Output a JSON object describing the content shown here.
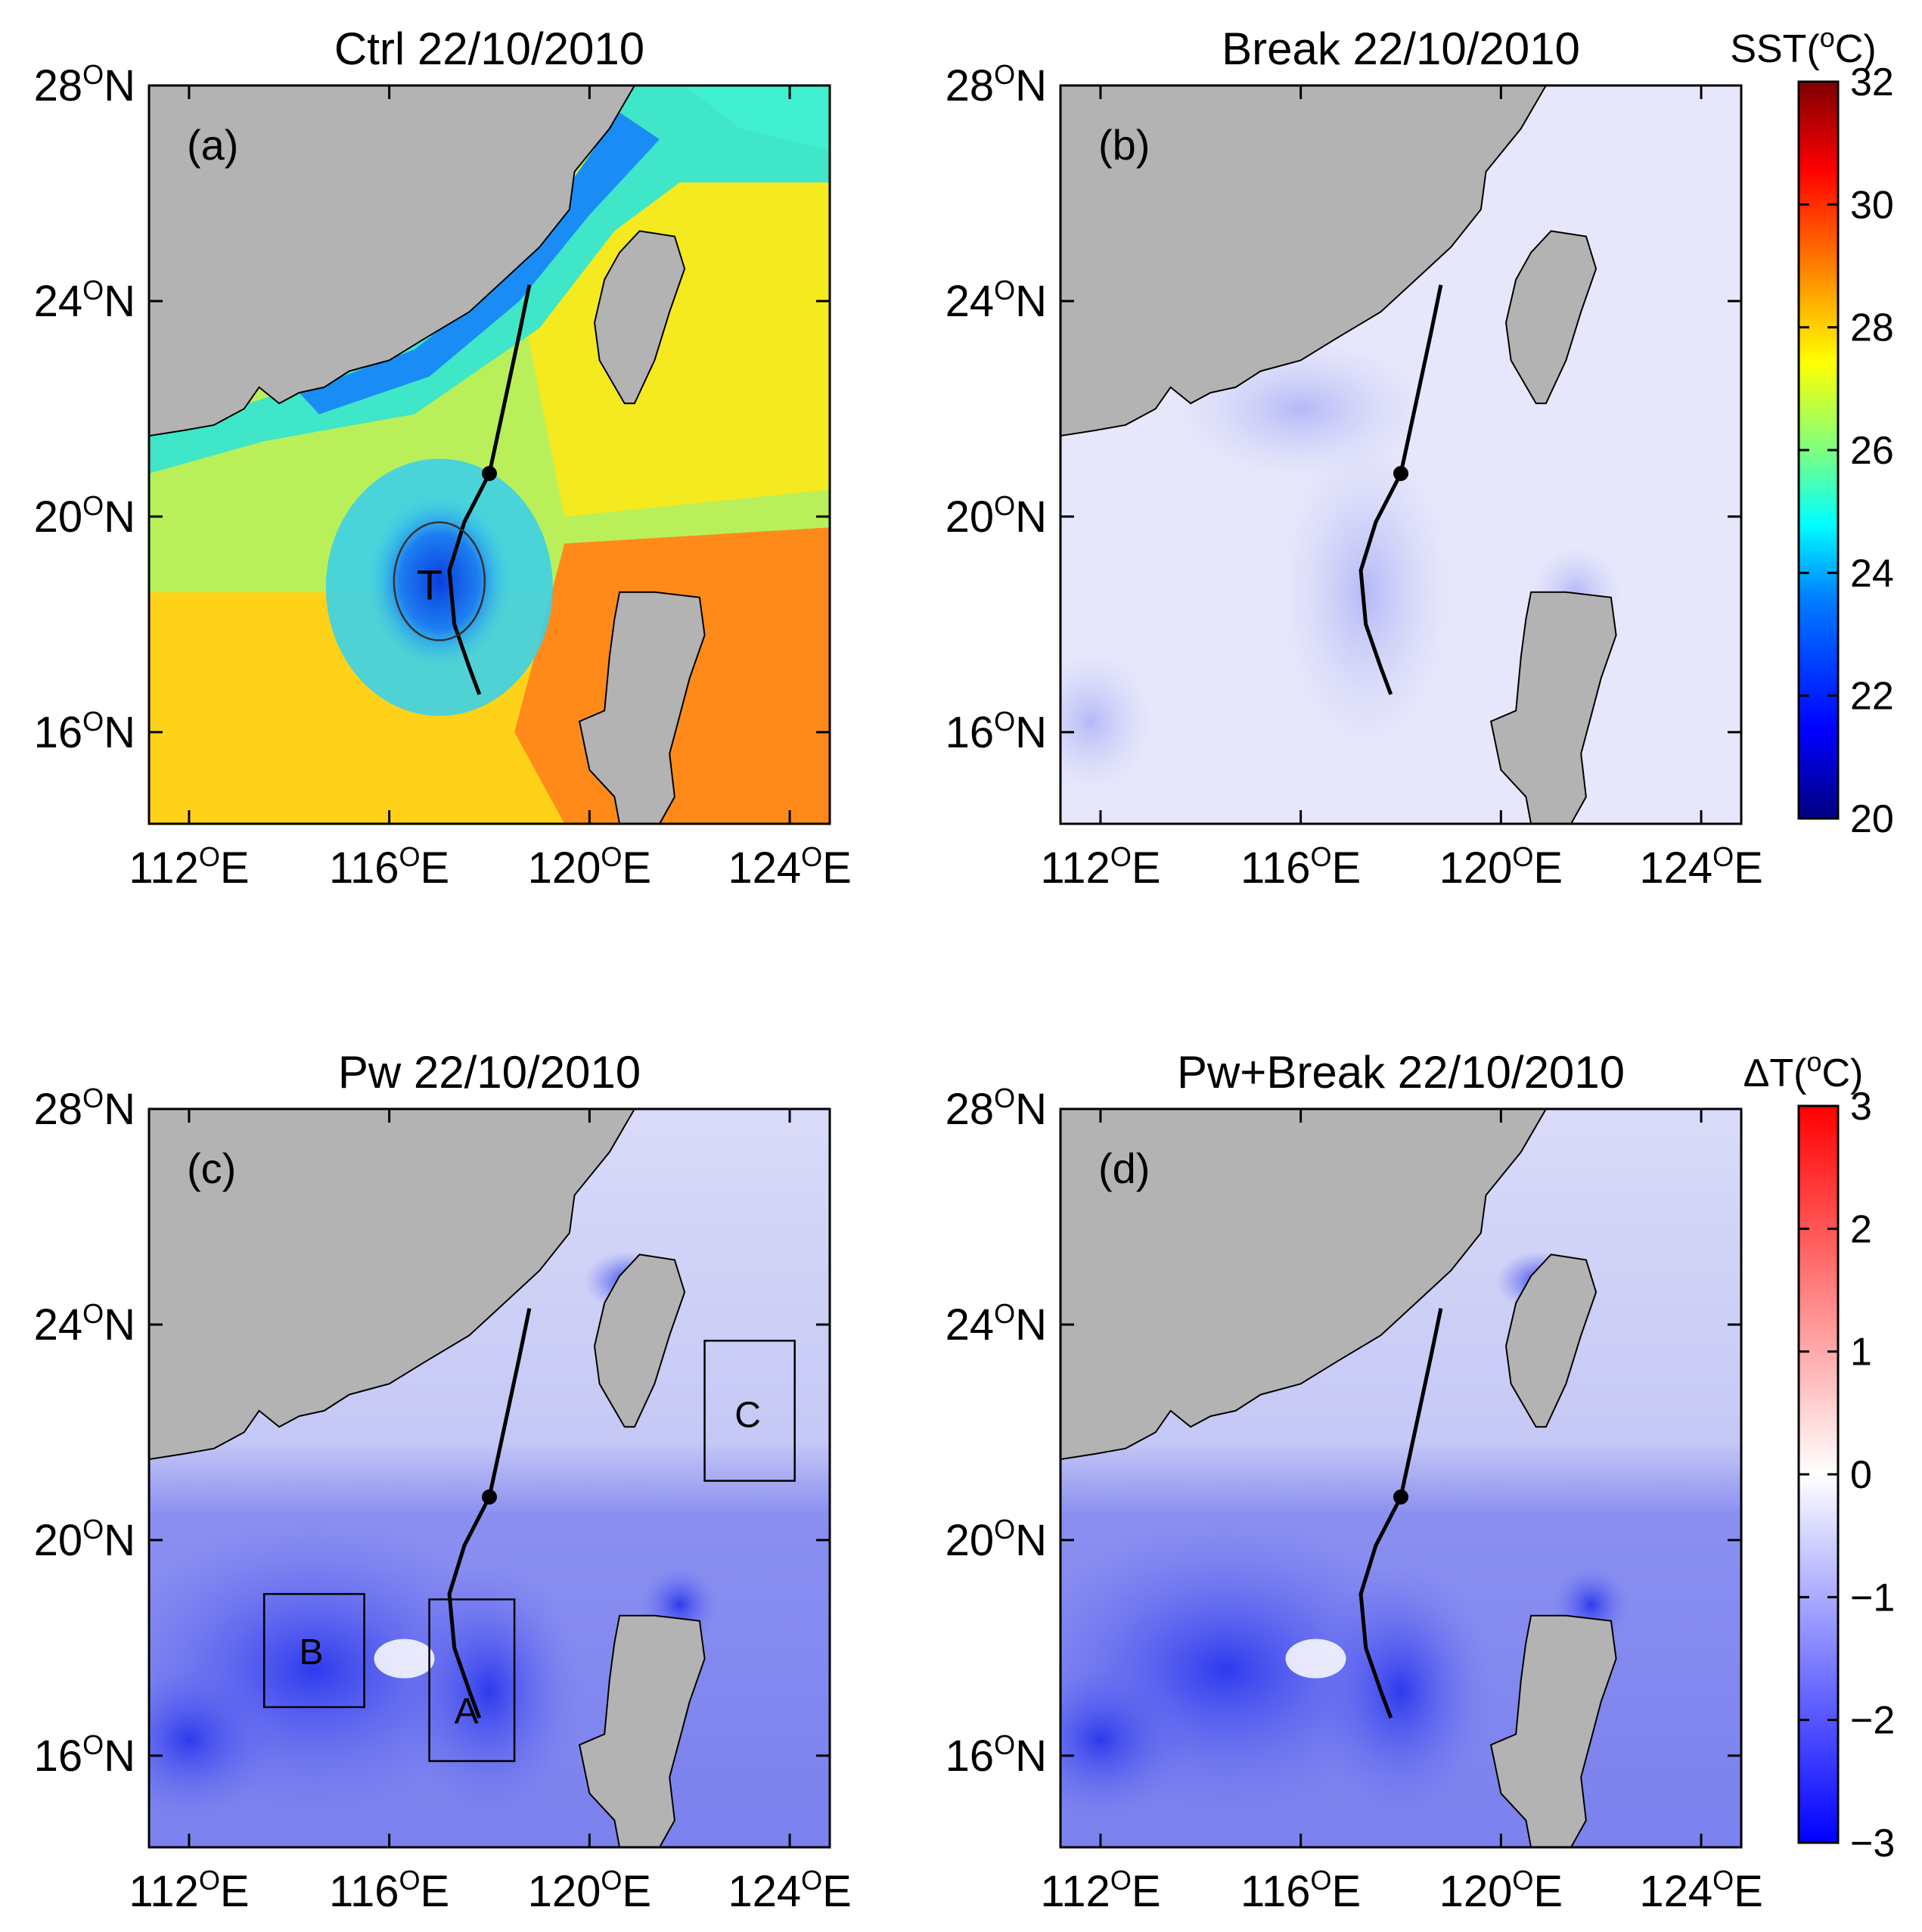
{
  "figure": {
    "sst_colorbar": {
      "title": "SST(",
      "title_sup": "o",
      "title_end": "C)",
      "ticks": [
        "32",
        "30",
        "28",
        "26",
        "24",
        "22",
        "20"
      ],
      "range": [
        20,
        32
      ],
      "colors": [
        "#00007f",
        "#0000ff",
        "#007fff",
        "#00ffff",
        "#7fff7f",
        "#ffff00",
        "#ff7f00",
        "#ff0000",
        "#7f0000"
      ]
    },
    "dt_colorbar": {
      "title": "ΔT(",
      "title_sup": "o",
      "title_end": "C)",
      "ticks": [
        "3",
        "2",
        "1",
        "0",
        "−1",
        "−2",
        "−3"
      ],
      "range": [
        -3,
        3
      ],
      "colors": [
        "#0000ff",
        "#ffffff",
        "#ff0000"
      ]
    },
    "lon_ticks": [
      "112",
      "116",
      "120",
      "124"
    ],
    "lat_ticks": [
      "28",
      "24",
      "20",
      "16"
    ],
    "lon_unit": "E",
    "lat_unit": "N",
    "degree_sup": "O",
    "land_color": "#b3b3b3",
    "track_color": "#000000"
  },
  "panels": [
    {
      "id": "a",
      "title": "Ctrl 22/10/2010",
      "label": "(a)",
      "eddy_label": "T"
    },
    {
      "id": "b",
      "title": "Break 22/10/2010",
      "label": "(b)"
    },
    {
      "id": "c",
      "title": "Pw 22/10/2010",
      "label": "(c)",
      "boxes": [
        "A",
        "B",
        "C"
      ]
    },
    {
      "id": "d",
      "title": "Pw+Break 22/10/2010",
      "label": "(d)"
    }
  ]
}
